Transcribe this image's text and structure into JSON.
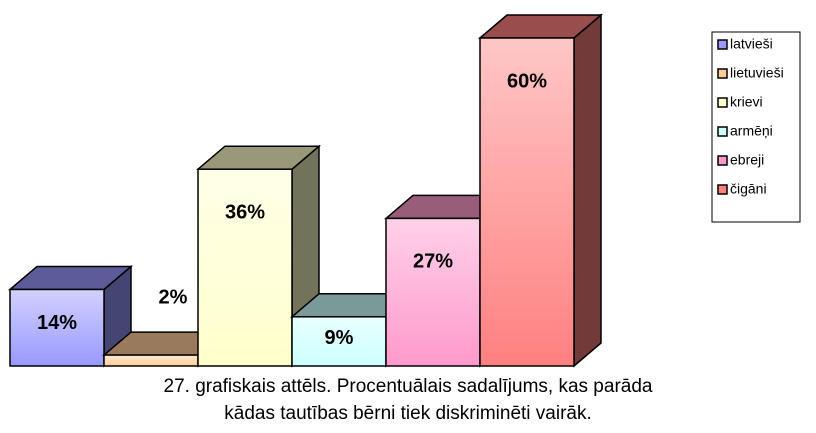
{
  "chart_data": {
    "type": "bar3d",
    "categories": [
      "latvieši",
      "lietuvieši",
      "krievi",
      "armēņi",
      "ebreji",
      "čigāni"
    ],
    "values": [
      14,
      2,
      36,
      9,
      27,
      60
    ],
    "value_labels": [
      "14%",
      "2%",
      "36%",
      "9%",
      "27%",
      "60%"
    ],
    "colors": [
      "#9999ff",
      "#ffcc99",
      "#ffffcc",
      "#ccffff",
      "#ff99cc",
      "#ff8080"
    ],
    "caption": [
      "27. grafiskais attēls. Procentuālais sadalījums, kas parāda",
      "kādas tautības bērni tiek diskriminēti vairāk."
    ],
    "legend": "right"
  }
}
